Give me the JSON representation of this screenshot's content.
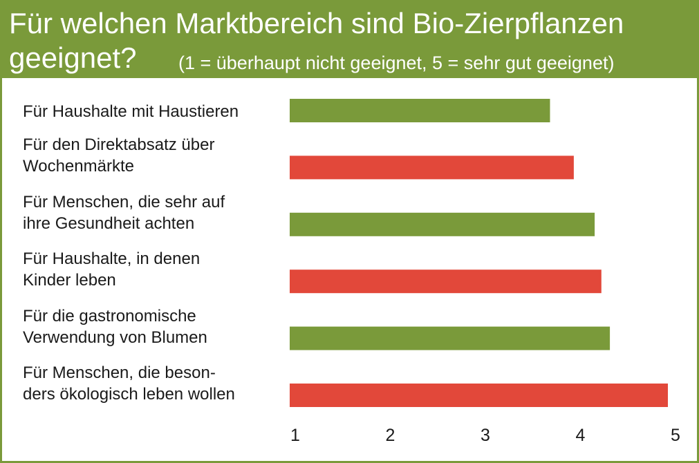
{
  "header": {
    "title_line1": "Für welchen Marktbereich sind Bio-Zierpflanzen",
    "title_line2": "geeignet?",
    "subtitle": "(1 = überhaupt nicht geeignet, 5 = sehr gut geeignet)"
  },
  "colors": {
    "header_bg": "#7a9a3a",
    "bar_green": "#7a9a3a",
    "bar_red": "#e2483a"
  },
  "chart_data": {
    "type": "bar",
    "orientation": "horizontal",
    "title": "Für welchen Marktbereich sind Bio-Zierpflanzen geeignet?",
    "subtitle": "(1 = überhaupt nicht geeignet, 5 = sehr gut geeignet)",
    "categories": [
      "Für Haushalte mit Haustieren",
      "Für den Direktabsatz über\nWochenmärkte",
      "Für Menschen, die sehr auf\nihre Gesundheit achten",
      "Für Haushalte, in denen\nKinder leben",
      "Für die gastronomische\nVerwendung von Blumen",
      "Für Menschen, die beson-\nders ökologisch leben wollen"
    ],
    "values": [
      3.68,
      3.93,
      4.15,
      4.22,
      4.31,
      4.92
    ],
    "bar_colors": [
      "#7a9a3a",
      "#e2483a",
      "#7a9a3a",
      "#e2483a",
      "#7a9a3a",
      "#e2483a"
    ],
    "xlim": [
      1,
      5
    ],
    "xticks": [
      "1",
      "2",
      "3",
      "4",
      "5"
    ],
    "grid": false,
    "xlabel": "",
    "ylabel": ""
  }
}
